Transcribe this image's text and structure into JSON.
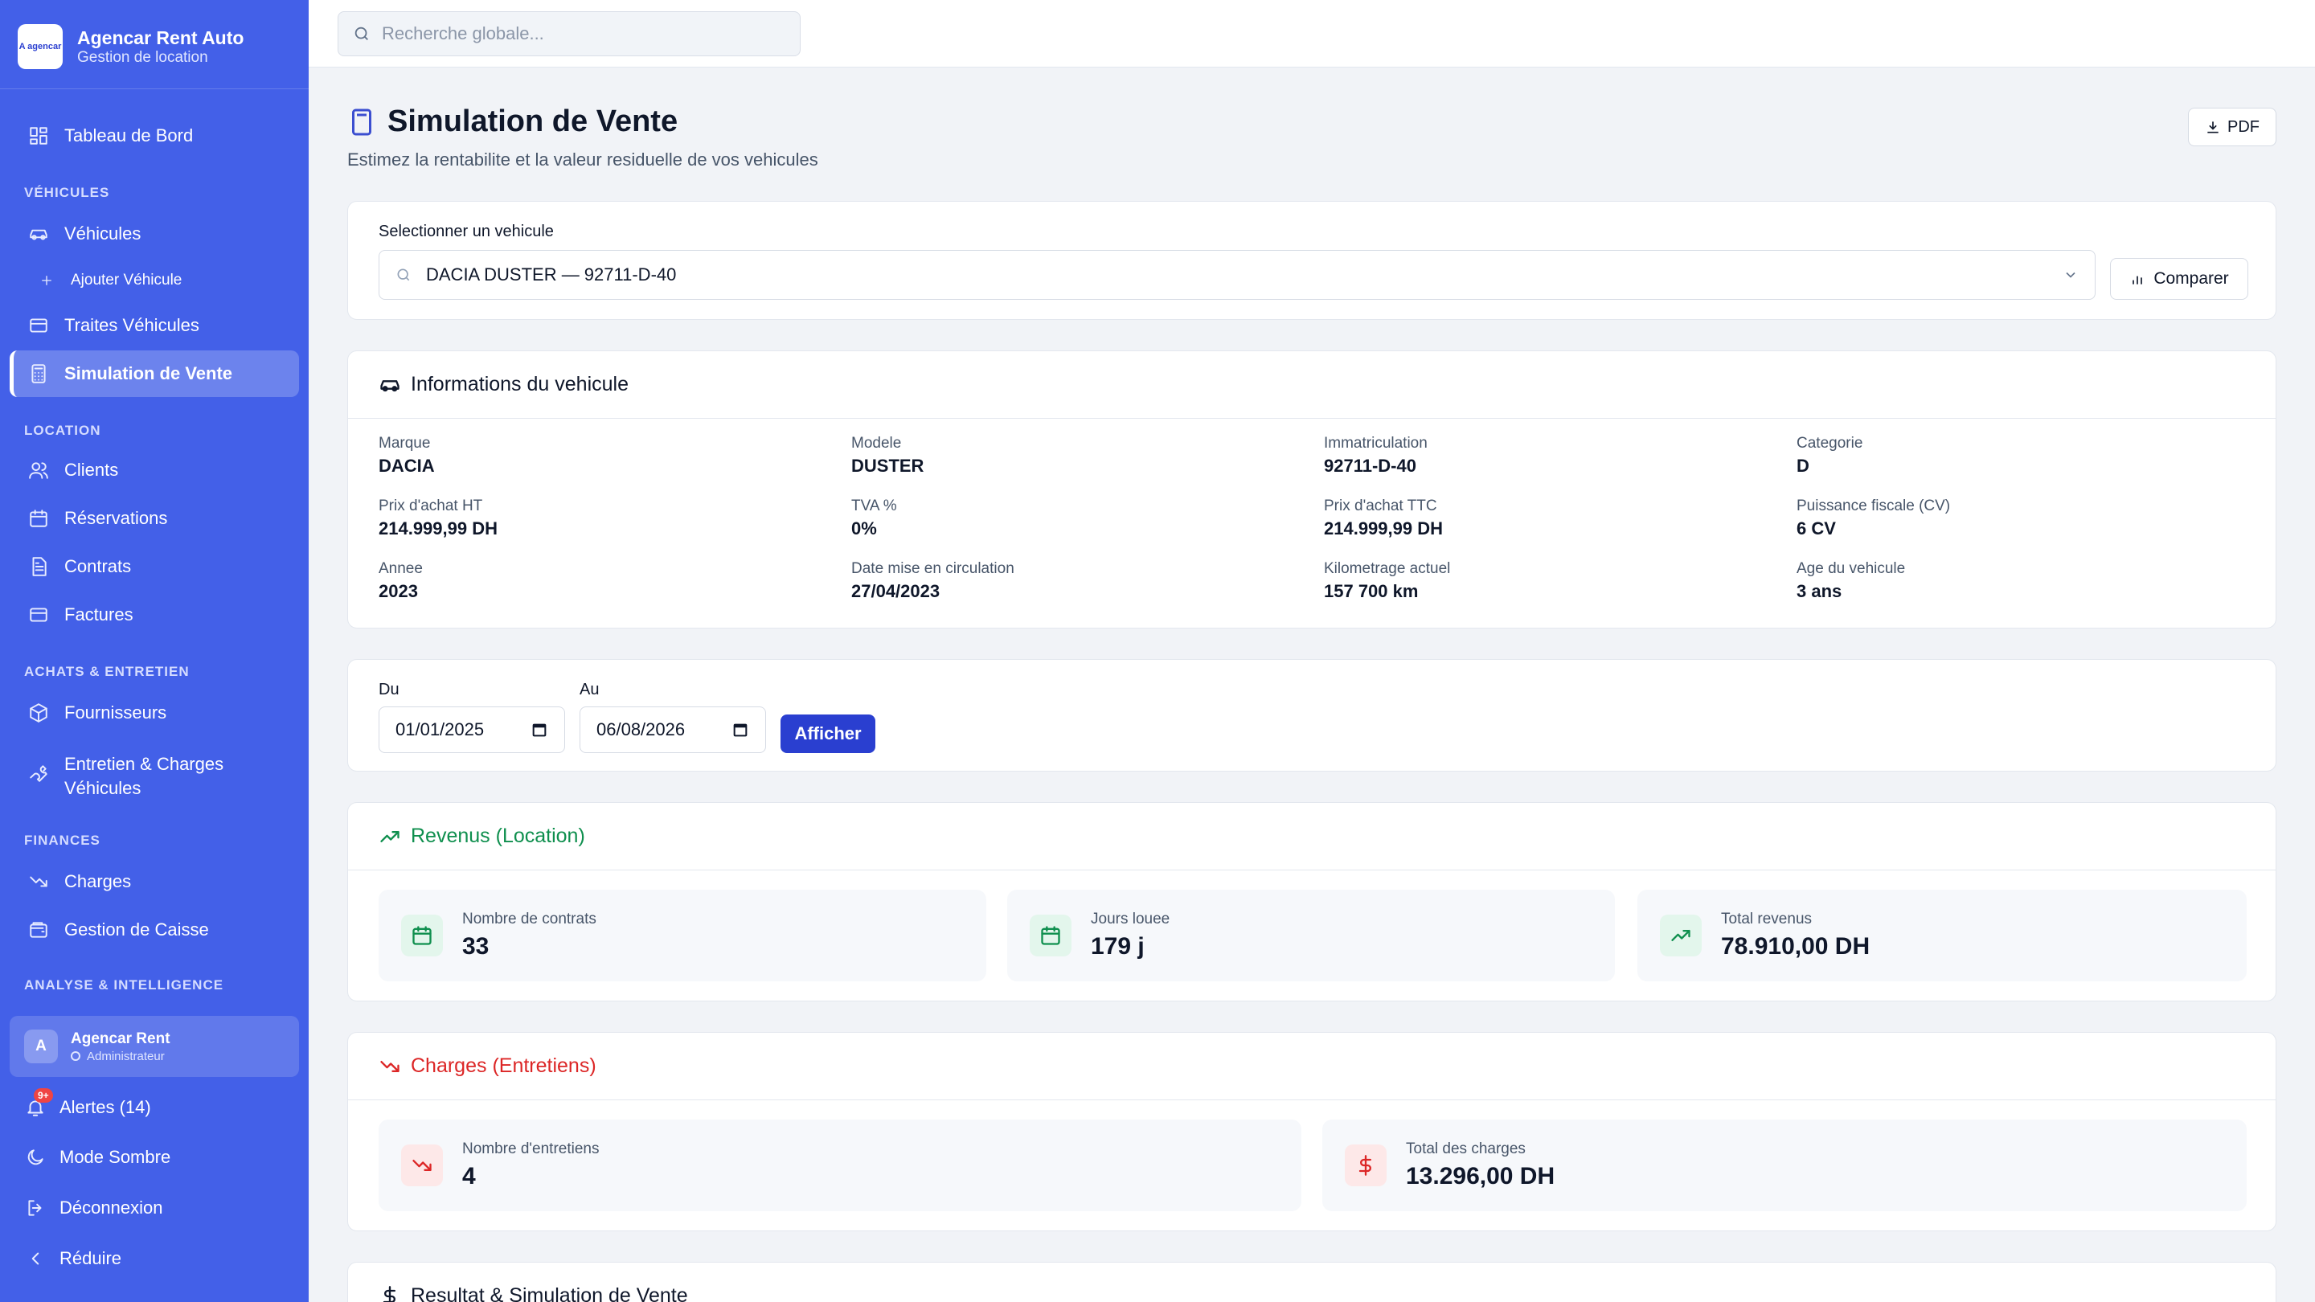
{
  "brand": {
    "name": "Agencar Rent Auto",
    "subtitle": "Gestion de location",
    "logo_text": "A agencar"
  },
  "search": {
    "placeholder": "Recherche globale..."
  },
  "sidebar": {
    "dashboard": "Tableau de Bord",
    "section_vehicules": "VÉHICULES",
    "vehicules": "Véhicules",
    "ajouter_vehicule": "Ajouter Véhicule",
    "traites": "Traites Véhicules",
    "simulation": "Simulation de Vente",
    "section_location": "LOCATION",
    "clients": "Clients",
    "reservations": "Réservations",
    "contrats": "Contrats",
    "factures": "Factures",
    "section_achats": "ACHATS & ENTRETIEN",
    "fournisseurs": "Fournisseurs",
    "entretien_l1": "Entretien & Charges",
    "entretien_l2": "Véhicules",
    "section_finances": "FINANCES",
    "charges": "Charges",
    "caisse": "Gestion de Caisse",
    "section_analyse": "ANALYSE & INTELLIGENCE"
  },
  "user": {
    "initial": "A",
    "name": "Agencar Rent",
    "role": "Administrateur"
  },
  "bottom": {
    "alertes": "Alertes (14)",
    "alert_badge": "9+",
    "mode_sombre": "Mode Sombre",
    "deconnexion": "Déconnexion",
    "reduire": "Réduire"
  },
  "page": {
    "title": "Simulation de Vente",
    "subtitle": "Estimez la rentabilite et la valeur residuelle de vos vehicules",
    "pdf_label": "PDF"
  },
  "selector": {
    "label": "Selectionner un vehicule",
    "value": "DACIA  DUSTER — 92711-D-40",
    "compare_label": "Comparer"
  },
  "vehicle_info": {
    "title": "Informations du vehicule",
    "fields": [
      {
        "k": "Marque",
        "v": "DACIA"
      },
      {
        "k": "Modele",
        "v": "DUSTER"
      },
      {
        "k": "Immatriculation",
        "v": "92711-D-40"
      },
      {
        "k": "Categorie",
        "v": "D"
      },
      {
        "k": "Prix d'achat HT",
        "v": "214.999,99 DH"
      },
      {
        "k": "TVA %",
        "v": "0%"
      },
      {
        "k": "Prix d'achat TTC",
        "v": "214.999,99 DH"
      },
      {
        "k": "Puissance fiscale (CV)",
        "v": "6 CV"
      },
      {
        "k": "Annee",
        "v": "2023"
      },
      {
        "k": "Date mise en circulation",
        "v": "27/04/2023"
      },
      {
        "k": "Kilometrage actuel",
        "v": "157 700 km"
      },
      {
        "k": "Age du vehicule",
        "v": "3 ans"
      }
    ]
  },
  "period": {
    "du_label": "Du",
    "du_value": "01/01/2025",
    "au_label": "Au",
    "au_value": "06/08/2026",
    "button": "Afficher"
  },
  "revenus": {
    "title": "Revenus (Location)",
    "color": "#0f8f4e",
    "stats": [
      {
        "k": "Nombre de contrats",
        "v": "33"
      },
      {
        "k": "Jours louee",
        "v": "179 j"
      },
      {
        "k": "Total revenus",
        "v": "78.910,00 DH"
      }
    ]
  },
  "charges": {
    "title": "Charges (Entretiens)",
    "color": "#dc2626",
    "stats": [
      {
        "k": "Nombre d'entretiens",
        "v": "4"
      },
      {
        "k": "Total des charges",
        "v": "13.296,00 DH"
      }
    ]
  },
  "resultat": {
    "title": "Resultat & Simulation de Vente"
  }
}
